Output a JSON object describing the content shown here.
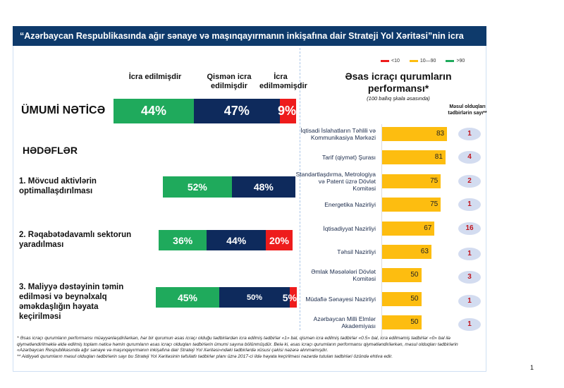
{
  "header": {
    "title": "“Azərbaycan Respublikasında ağır sənaye və maşınqayırmanın inkişafına dair Strateji Yol Xəritəsi”nin icra vəziyyəti"
  },
  "colors": {
    "done": "#1faa5c",
    "partial": "#0e2a5c",
    "not_done": "#ee1c1c",
    "performance": "#fdbd10",
    "header": "#0e3a6b"
  },
  "columns": [
    "İcra edilmişdir",
    "Qismən icra edilmişdir",
    "İcra edilməmişdir"
  ],
  "overall": {
    "label": "ÜMUMİ NƏTİCƏ",
    "values": [
      44,
      47,
      9
    ],
    "labels": [
      "44%",
      "47%",
      "9%"
    ]
  },
  "goals_title": "HƏDƏFLƏR",
  "goals": [
    {
      "label": "1. Mövcud aktivlərin optimallaşdırılması",
      "values": [
        52,
        48,
        0
      ],
      "labels": [
        "52%",
        "48%",
        ""
      ]
    },
    {
      "label": "2. Rəqabətədavamlı sektorun yaradılması",
      "values": [
        36,
        44,
        20
      ],
      "labels": [
        "36%",
        "44%",
        "20%"
      ]
    },
    {
      "label": "3. Maliyyə dəstəyinin təmin edilməsi və beynəlxalq əməkdaşlığın həyata keçirilməsi",
      "values": [
        45,
        50,
        5
      ],
      "labels": [
        "45%",
        "50%",
        "5%"
      ]
    }
  ],
  "legend": [
    {
      "label": "<10",
      "color": "#ee1c1c"
    },
    {
      "label": "10—90",
      "color": "#fdbd10"
    },
    {
      "label": ">90",
      "color": "#1faa5c"
    }
  ],
  "right": {
    "title": "Əsas icraçı qurumların performansı*",
    "subtitle": "(100 ballıq şkala əsasında)",
    "count_header": "Məsul olduqları tədbirlərin sayı**"
  },
  "chart_data": {
    "type": "bar",
    "orientation": "horizontal",
    "xlim": [
      0,
      100
    ],
    "categories": [
      "İqtisadi İslahatların Təhlili və Kommunikasiya Mərkəzi",
      "Tarif (qiymət) Şurası",
      "Standartlaşdırma, Metrologiya və Patent üzrə Dövlət Komitəsi",
      "Energetika Nazirliyi",
      "İqtisadiyyat Nazirliyi",
      "Təhsil Nazirliyi",
      "Əmlak Məsələləri Dövlət Komitəsi",
      "Müdafiə Sənayesi Nazirliyi",
      "Azərbaycan Milli Elmlər Akademiyası"
    ],
    "values": [
      83,
      81,
      75,
      75,
      67,
      63,
      50,
      50,
      50
    ],
    "counts": [
      1,
      4,
      2,
      1,
      16,
      1,
      3,
      1,
      1
    ]
  },
  "notes": [
    "* Əsas icraçı qurumların performansı müəyyənləşdirilərkən, hər bir qurumun əsas icraçı olduğu tədbirlərdən icra edilmiş tədbirlər «1» bal, qismən icra edilmiş tədbirlər «0.5» bal, icra edilməmiş tədbirlər «0» bal ilə qiymətləndirilməklə əldə edilmiş toplam nəticə həmin qurumların əsas icraçı olduqları tədbirlərin ümumi sayına bölünmüşdür. Belə ki, əsas icraçı qurumların performansı qiymətləndirilərkən, məsul olduqları tədbirlərin «Azərbaycan Respublikasında ağır sənaye və maşınqayırmanın inkişafına dair Strateji Yol Xəritəsi»ndəki tədbirlərdə xüsusi çəkisi nəzərə alınmamışdır.",
    "** Aidiyyəti qurumların məsul olduqları tədbirlərin sayı bu Strateji Yol Xəritəsinin təfsilatlı tədbirlər planı üzrə 2017-ci ildə həyata keçirilməsi nəzərdə tutulan tədbirləri özündə ehtiva edir."
  ],
  "page_number": "1"
}
